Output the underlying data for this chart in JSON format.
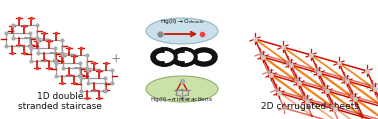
{
  "background_color": "#ffffff",
  "left_label": "1D double\nstranded staircase",
  "right_label": "2D corrugated sheets",
  "label_fontsize": 6.5,
  "top_oval_color": "#c5dde8",
  "top_oval_edge": "#8ab0be",
  "bot_oval_color": "#c5dfa0",
  "bot_oval_edge": "#8aaa60",
  "top_text": "Hg(II)→O",
  "top_sub": "dioxole",
  "bot_text": "Hg(II)–π interactions",
  "chain_color": "#1a1a1a",
  "red": "#cc1100",
  "red2": "#dd2200",
  "grey_node": "#aaaaaa",
  "grey_line": "#888888",
  "white_node": "#dddddd",
  "orange": "#ee7700",
  "grey_bond": "#999999"
}
